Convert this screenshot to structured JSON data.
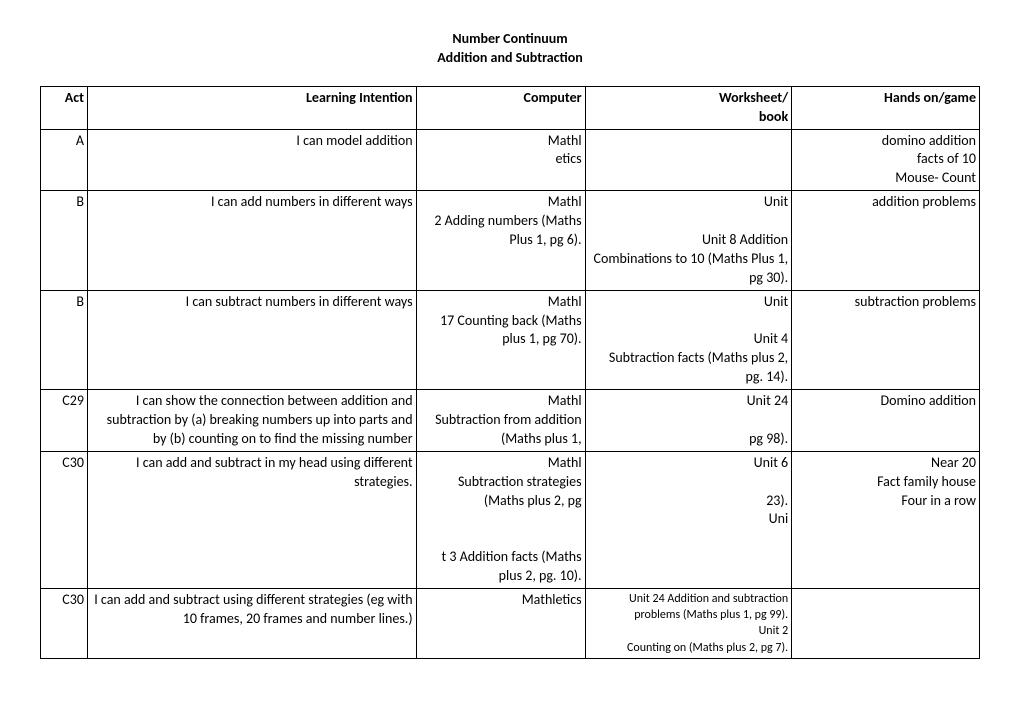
{
  "title_line1": "Number Continuum",
  "title_line2": "Addition and Subtraction",
  "headers": {
    "act": "Act",
    "learning_intention": "Learning Intention",
    "computer": "Computer",
    "worksheet": "Worksheet/\nbook",
    "hands_on": "Hands on/game"
  },
  "rows": [
    {
      "act": "A",
      "learning_intention": "I can model addition",
      "computer": "Mathl\netics",
      "worksheet": "",
      "hands_on": "domino addition\nfacts of 10\nMouse- Count"
    },
    {
      "act": "B",
      "learning_intention": "I can add numbers in different ways",
      "computer": "Mathl\n2 Adding numbers (Maths Plus 1, pg 6).",
      "worksheet": "Unit\n\nUnit 8 Addition\nCombinations to 10 (Maths Plus 1, pg 30).",
      "hands_on": "addition problems",
      "merge_cw": true
    },
    {
      "act": "B",
      "learning_intention": "I can subtract numbers in different ways",
      "computer": "Mathl\n17 Counting back (Maths plus 1, pg 70).",
      "worksheet": "Unit\n\nUnit 4\nSubtraction facts (Maths plus 2, pg. 14).",
      "hands_on": "subtraction problems",
      "merge_cw": true
    },
    {
      "act": "C29",
      "learning_intention": "I can show the connection between addition and subtraction by (a) breaking numbers up into parts and by (b) counting on to find the missing number",
      "computer": "Mathl\nSubtraction from addition (Maths plus 1,",
      "worksheet": "Unit 24\n\npg 98).",
      "hands_on": "Domino addition",
      "merge_cw": true
    },
    {
      "act": "C30",
      "learning_intention": "I can add and subtract in my head using different strategies.",
      "computer": "Mathl\nSubtraction strategies (Maths plus 2, pg\n\n\nt 3 Addition facts (Maths plus 2, pg. 10).",
      "worksheet": "Unit 6\n\n23).\nUni\n\n ",
      "hands_on": "Near 20\nFact family house\nFour in a row",
      "merge_cw": true
    },
    {
      "act": "C30",
      "learning_intention": "I can add and subtract using different strategies (eg with 10 frames, 20 frames and number lines.)",
      "computer": "Mathletics",
      "worksheet": "Unit 24 Addition and subtraction\nproblems (Maths plus 1, pg 99).\nUnit 2\nCounting on (Maths plus 2, pg 7).",
      "hands_on": "",
      "ws_small": true
    }
  ]
}
